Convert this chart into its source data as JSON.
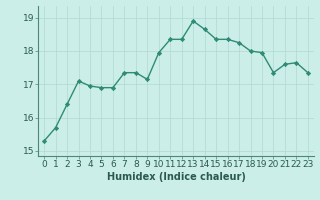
{
  "x": [
    0,
    1,
    2,
    3,
    4,
    5,
    6,
    7,
    8,
    9,
    10,
    11,
    12,
    13,
    14,
    15,
    16,
    17,
    18,
    19,
    20,
    21,
    22,
    23
  ],
  "y": [
    15.3,
    15.7,
    16.4,
    17.1,
    16.95,
    16.9,
    16.9,
    17.35,
    17.35,
    17.15,
    17.95,
    18.35,
    18.35,
    18.9,
    18.65,
    18.35,
    18.35,
    18.25,
    18.0,
    17.95,
    17.35,
    17.6,
    17.65,
    17.35
  ],
  "line_color": "#2e8b75",
  "marker": "D",
  "marker_size": 2.2,
  "line_width": 1.0,
  "bg_color": "#cceee8",
  "grid_color": "#b0d8d0",
  "xlabel": "Humidex (Indice chaleur)",
  "ylabel": "",
  "xlim": [
    -0.5,
    23.5
  ],
  "ylim": [
    14.85,
    19.35
  ],
  "yticks": [
    15,
    16,
    17,
    18,
    19
  ],
  "xticks": [
    0,
    1,
    2,
    3,
    4,
    5,
    6,
    7,
    8,
    9,
    10,
    11,
    12,
    13,
    14,
    15,
    16,
    17,
    18,
    19,
    20,
    21,
    22,
    23
  ],
  "tick_color": "#2a5a50",
  "axis_label_fontsize": 7,
  "tick_fontsize": 6.5,
  "spine_color": "#4a8878"
}
